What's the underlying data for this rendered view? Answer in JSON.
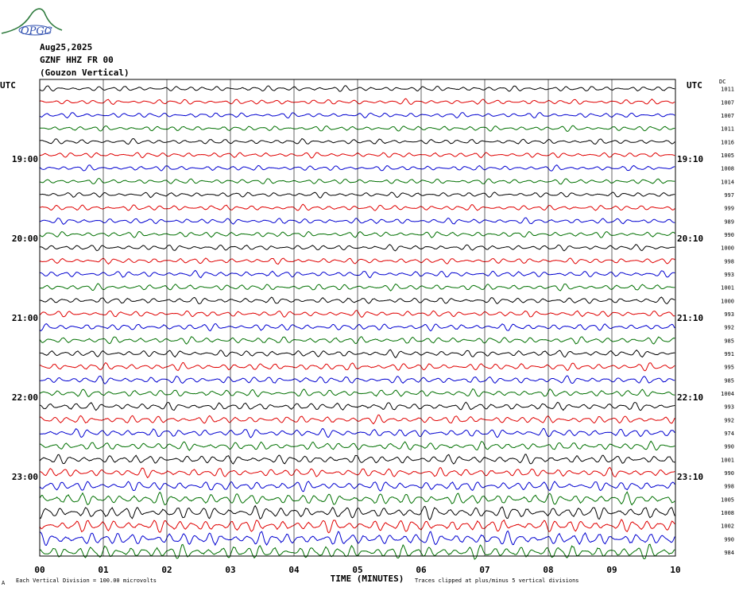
{
  "header": {
    "date": "Aug25,2025",
    "station": "GZNF HHZ FR 00",
    "location": "(Gouzon Vertical)",
    "logo_text": "OPGC"
  },
  "left_axis_label": "UTC",
  "right_axis_label": "UTC",
  "dc_label": "DC",
  "footer": {
    "xlabel": "TIME (MINUTES)",
    "left_note": "Each Vertical Division =  100.00 microvolts",
    "right_note": "Traces clipped at plus/minus 5 vertical divisions",
    "corner_mark": "A"
  },
  "colors": {
    "trace_cycle": [
      "#000000",
      "#e00000",
      "#0000d0",
      "#007000"
    ],
    "grid": "#000000"
  },
  "chart_data": {
    "type": "line",
    "title": "",
    "xlabel": "TIME (MINUTES)",
    "xlim": [
      0,
      10
    ],
    "x_ticks": [
      "00",
      "01",
      "02",
      "03",
      "04",
      "05",
      "06",
      "07",
      "08",
      "09",
      "10"
    ],
    "trace_count": 36,
    "left_hour_labels": [
      {
        "row": 6,
        "text": "19:00"
      },
      {
        "row": 12,
        "text": "20:00"
      },
      {
        "row": 18,
        "text": "21:00"
      },
      {
        "row": 24,
        "text": "22:00"
      },
      {
        "row": 30,
        "text": "23:00"
      }
    ],
    "right_hour_labels": [
      {
        "row": 6,
        "text": "19:10"
      },
      {
        "row": 12,
        "text": "20:10"
      },
      {
        "row": 18,
        "text": "21:10"
      },
      {
        "row": 24,
        "text": "22:10"
      },
      {
        "row": 30,
        "text": "23:10"
      }
    ],
    "dc_offsets": [
      "1011",
      "1007",
      "1007",
      "1011",
      "1016",
      "1005",
      "1008",
      "1014",
      "997",
      "999",
      "989",
      "990",
      "1000",
      "998",
      "993",
      "1001",
      "1000",
      "993",
      "992",
      "985",
      "991",
      "995",
      "985",
      "1004",
      "993",
      "992",
      "974",
      "990",
      "1001",
      "990",
      "998",
      "1005",
      "1008",
      "1002",
      "990",
      "984"
    ],
    "amplitude_profile": [
      1,
      1,
      1,
      1,
      1,
      1,
      1,
      1,
      1,
      1.1,
      1.1,
      1.1,
      1.1,
      1.1,
      1.2,
      1.2,
      1.2,
      1.2,
      1.3,
      1.3,
      1.3,
      1.4,
      1.4,
      1.4,
      1.5,
      1.5,
      1.6,
      1.6,
      1.7,
      1.7,
      1.9,
      2.2,
      2.4,
      2.4,
      2.5,
      2.6
    ]
  }
}
